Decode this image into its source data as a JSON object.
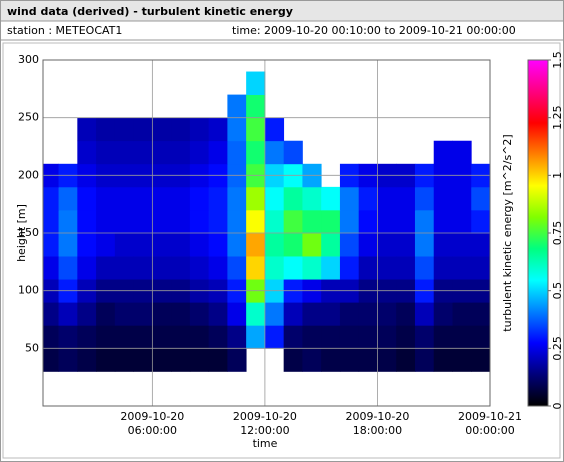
{
  "chart_data": {
    "type": "heatmap",
    "title": "wind data (derived) - turbulent kinetic energy",
    "station": "station : METEOCAT1",
    "time_range": "time: 2009-10-20 00:10:00 to 2009-10-21 00:00:00",
    "xlabel": "time",
    "ylabel": "height [m]",
    "colorbar_label": "turbulent kinetic energy [m^2/s^2]",
    "x": [
      0.5,
      1.5,
      2.5,
      3.5,
      4.5,
      5.5,
      6.5,
      7.5,
      8.5,
      9.5,
      10.5,
      11.5,
      12.5,
      13.5,
      14.5,
      15.5,
      16.5,
      17.5,
      18.5,
      19.5,
      20.5,
      21.5,
      22.5,
      23.5
    ],
    "y": [
      40,
      60,
      80,
      100,
      120,
      140,
      160,
      180,
      200,
      220,
      240,
      260,
      280
    ],
    "values": [
      [
        0.08,
        0.1,
        0.08,
        0.06,
        0.06,
        0.06,
        0.06,
        0.06,
        0.06,
        0.06,
        0.1,
        null,
        null,
        0.08,
        0.1,
        0.08,
        0.08,
        0.08,
        0.08,
        0.06,
        0.1,
        0.06,
        0.06,
        0.06
      ],
      [
        0.1,
        0.12,
        0.1,
        0.08,
        0.08,
        0.08,
        0.08,
        0.08,
        0.08,
        0.1,
        0.15,
        0.45,
        0.3,
        0.12,
        0.1,
        0.1,
        0.1,
        0.1,
        0.1,
        0.08,
        0.12,
        0.08,
        0.08,
        0.08
      ],
      [
        0.15,
        0.2,
        0.15,
        0.1,
        0.12,
        0.12,
        0.1,
        0.1,
        0.12,
        0.15,
        0.25,
        0.6,
        0.4,
        0.2,
        0.15,
        0.15,
        0.12,
        0.12,
        0.12,
        0.1,
        0.2,
        0.12,
        0.1,
        0.1
      ],
      [
        0.2,
        0.3,
        0.2,
        0.15,
        0.15,
        0.15,
        0.15,
        0.15,
        0.18,
        0.2,
        0.3,
        0.8,
        0.5,
        0.3,
        0.25,
        0.2,
        0.2,
        0.15,
        0.15,
        0.15,
        0.3,
        0.15,
        0.15,
        0.15
      ],
      [
        0.25,
        0.35,
        0.25,
        0.2,
        0.2,
        0.2,
        0.2,
        0.2,
        0.22,
        0.25,
        0.35,
        1.0,
        0.6,
        0.55,
        0.6,
        0.5,
        0.3,
        0.2,
        0.2,
        0.2,
        0.35,
        0.2,
        0.2,
        0.2
      ],
      [
        0.3,
        0.4,
        0.28,
        0.25,
        0.22,
        0.22,
        0.22,
        0.22,
        0.25,
        0.28,
        0.4,
        1.05,
        0.65,
        0.7,
        0.8,
        0.65,
        0.35,
        0.25,
        0.22,
        0.22,
        0.4,
        0.22,
        0.22,
        0.22
      ],
      [
        0.3,
        0.4,
        0.28,
        0.25,
        0.25,
        0.25,
        0.25,
        0.25,
        0.28,
        0.3,
        0.4,
        0.95,
        0.6,
        0.75,
        0.7,
        0.7,
        0.4,
        0.28,
        0.25,
        0.25,
        0.4,
        0.25,
        0.25,
        0.3
      ],
      [
        0.3,
        0.38,
        0.28,
        0.25,
        0.25,
        0.25,
        0.25,
        0.25,
        0.28,
        0.3,
        0.4,
        0.85,
        0.55,
        0.65,
        0.6,
        0.55,
        0.4,
        0.3,
        0.25,
        0.25,
        0.35,
        0.25,
        0.25,
        0.35
      ],
      [
        0.25,
        0.3,
        0.25,
        0.22,
        0.22,
        0.22,
        0.22,
        0.22,
        0.25,
        0.28,
        0.38,
        0.75,
        0.5,
        0.55,
        0.45,
        null,
        0.3,
        0.25,
        0.22,
        0.22,
        0.3,
        0.25,
        0.25,
        0.3
      ],
      [
        null,
        null,
        0.22,
        0.2,
        0.2,
        0.2,
        0.2,
        0.2,
        0.22,
        0.25,
        0.38,
        0.7,
        0.4,
        0.35,
        null,
        null,
        null,
        null,
        null,
        null,
        null,
        0.25,
        0.25,
        null
      ],
      [
        null,
        null,
        0.2,
        0.18,
        0.18,
        0.18,
        0.18,
        0.18,
        0.2,
        0.22,
        0.4,
        0.75,
        0.3,
        null,
        null,
        null,
        null,
        null,
        null,
        null,
        null,
        null,
        null,
        null
      ],
      [
        null,
        null,
        null,
        null,
        null,
        null,
        null,
        null,
        null,
        null,
        0.4,
        0.7,
        null,
        null,
        null,
        null,
        null,
        null,
        null,
        null,
        null,
        null,
        null,
        null
      ],
      [
        null,
        null,
        null,
        null,
        null,
        null,
        null,
        null,
        null,
        null,
        null,
        0.5,
        null,
        null,
        null,
        null,
        null,
        null,
        null,
        null,
        null,
        null,
        null,
        null
      ]
    ],
    "xlim": [
      0.17,
      24
    ],
    "ylim": [
      0,
      300
    ],
    "xticks": [
      {
        "value": 6,
        "label": "2009-10-20\n06:00:00"
      },
      {
        "value": 12,
        "label": "2009-10-20\n12:00:00"
      },
      {
        "value": 18,
        "label": "2009-10-20\n18:00:00"
      },
      {
        "value": 24,
        "label": "2009-10-21\n00:00:00"
      }
    ],
    "yticks": [
      50,
      100,
      150,
      200,
      250,
      300
    ],
    "clim": [
      0,
      1.5
    ],
    "cticks": [
      0,
      0.25,
      0.5,
      0.75,
      1,
      1.25,
      1.5
    ],
    "colorscale": [
      "#000000",
      "#00007a",
      "#0000ff",
      "#0080ff",
      "#00ffff",
      "#00ff80",
      "#80ff00",
      "#ffff00",
      "#ff8000",
      "#ff0000",
      "#ff0080",
      "#ff00ff"
    ],
    "grid": true
  }
}
